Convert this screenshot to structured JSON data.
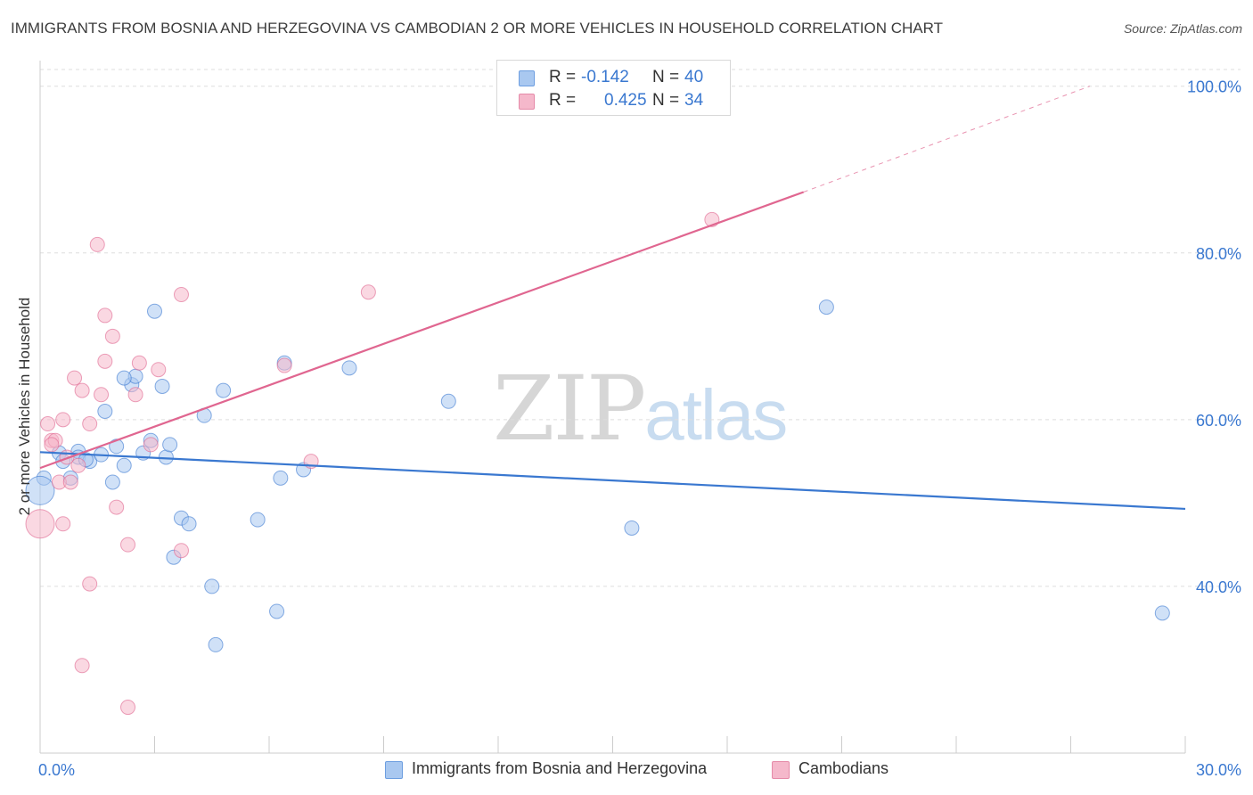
{
  "title": "IMMIGRANTS FROM BOSNIA AND HERZEGOVINA VS CAMBODIAN 2 OR MORE VEHICLES IN HOUSEHOLD CORRELATION CHART",
  "source": "Source: ZipAtlas.com",
  "watermark": {
    "part1": "ZIP",
    "part2": "atlas"
  },
  "stats": [
    {
      "r_label": "R =",
      "r_value": "-0.142",
      "n_label": "N =",
      "n_value": "40",
      "color": "#a9c8f0"
    },
    {
      "r_label": "R =",
      "r_value": "0.425",
      "n_label": "N =",
      "n_value": "34",
      "color": "#f5b8cb"
    }
  ],
  "colors": {
    "blue": "#3a78d0",
    "pink": "#e06690",
    "blue_fill": "#a9c8f0",
    "pink_fill": "#f5b8cb",
    "tick_text": "#3a78d0",
    "grid": "#dddddd"
  },
  "chart_data": {
    "type": "scatter",
    "title": "IMMIGRANTS FROM BOSNIA AND HERZEGOVINA VS CAMBODIAN 2 OR MORE VEHICLES IN HOUSEHOLD CORRELATION CHART",
    "xlabel": "",
    "ylabel": "2 or more Vehicles in Household",
    "xlim": [
      0,
      30
    ],
    "ylim": [
      20,
      102
    ],
    "x_tick_labels": [
      "0.0%",
      "30.0%"
    ],
    "y_tick_labels": [
      "40.0%",
      "60.0%",
      "80.0%",
      "100.0%"
    ],
    "y_ticks": [
      40,
      60,
      80,
      100
    ],
    "legend_position": "bottom-center",
    "series": [
      {
        "name": "Immigrants from Bosnia and Herzegovina",
        "color": "#3a78d0",
        "trend": {
          "x": [
            0,
            30
          ],
          "y": [
            56.1,
            49.3
          ]
        },
        "points": [
          [
            0.1,
            53.0
          ],
          [
            0.0,
            51.5
          ],
          [
            0.5,
            56.0
          ],
          [
            0.6,
            55.0
          ],
          [
            0.8,
            53.0
          ],
          [
            1.0,
            56.2
          ],
          [
            1.0,
            55.5
          ],
          [
            1.3,
            55.0
          ],
          [
            1.6,
            55.8
          ],
          [
            1.7,
            61.0
          ],
          [
            1.9,
            52.5
          ],
          [
            2.0,
            56.8
          ],
          [
            2.2,
            54.5
          ],
          [
            2.4,
            64.2
          ],
          [
            2.5,
            65.2
          ],
          [
            2.7,
            56.0
          ],
          [
            2.9,
            57.5
          ],
          [
            3.0,
            73.0
          ],
          [
            3.2,
            64.0
          ],
          [
            3.3,
            55.5
          ],
          [
            3.4,
            57.0
          ],
          [
            3.7,
            48.2
          ],
          [
            3.5,
            43.5
          ],
          [
            3.9,
            47.5
          ],
          [
            4.3,
            60.5
          ],
          [
            4.5,
            40.0
          ],
          [
            4.6,
            33.0
          ],
          [
            4.8,
            63.5
          ],
          [
            5.7,
            48.0
          ],
          [
            6.2,
            37.0
          ],
          [
            6.3,
            53.0
          ],
          [
            6.4,
            66.8
          ],
          [
            6.9,
            54.0
          ],
          [
            8.1,
            66.2
          ],
          [
            10.7,
            62.2
          ],
          [
            15.5,
            47.0
          ],
          [
            20.6,
            73.5
          ],
          [
            29.4,
            36.8
          ],
          [
            2.2,
            65.0
          ],
          [
            1.2,
            55.2
          ]
        ]
      },
      {
        "name": "Cambodians",
        "color": "#e06690",
        "trend": {
          "x": [
            0,
            20.0
          ],
          "y": [
            54.2,
            87.3
          ]
        },
        "trend_dashed": {
          "x": [
            20.0,
            27.5
          ],
          "y": [
            87.3,
            100
          ]
        },
        "points": [
          [
            0.0,
            47.5
          ],
          [
            0.2,
            59.5
          ],
          [
            0.3,
            57.5
          ],
          [
            0.4,
            57.5
          ],
          [
            0.5,
            52.5
          ],
          [
            0.6,
            47.5
          ],
          [
            0.6,
            60.0
          ],
          [
            0.7,
            55.5
          ],
          [
            0.8,
            52.5
          ],
          [
            0.9,
            65.0
          ],
          [
            1.1,
            63.5
          ],
          [
            1.1,
            30.5
          ],
          [
            1.3,
            59.5
          ],
          [
            1.3,
            40.3
          ],
          [
            1.5,
            81.0
          ],
          [
            1.6,
            63.0
          ],
          [
            1.7,
            67.0
          ],
          [
            1.7,
            72.5
          ],
          [
            1.9,
            70.0
          ],
          [
            2.0,
            49.5
          ],
          [
            2.3,
            45.0
          ],
          [
            2.3,
            25.5
          ],
          [
            2.5,
            63.0
          ],
          [
            2.6,
            66.8
          ],
          [
            2.9,
            57.0
          ],
          [
            3.1,
            66.0
          ],
          [
            3.7,
            75.0
          ],
          [
            3.7,
            44.3
          ],
          [
            6.4,
            66.5
          ],
          [
            7.1,
            55.0
          ],
          [
            8.6,
            75.3
          ],
          [
            17.6,
            84.0
          ],
          [
            0.3,
            57.0
          ],
          [
            1.0,
            54.5
          ]
        ]
      }
    ]
  }
}
